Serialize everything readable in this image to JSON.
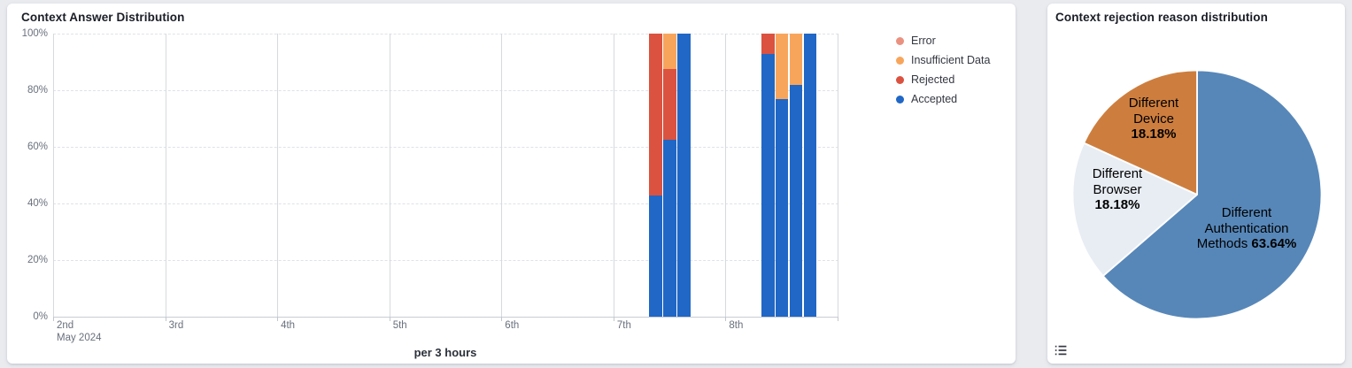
{
  "left_panel": {
    "title": "Context Answer Distribution",
    "legend": [
      {
        "label": "Error",
        "color": "#eb9180"
      },
      {
        "label": "Insufficient Data",
        "color": "#f8a55c"
      },
      {
        "label": "Rejected",
        "color": "#db5240"
      },
      {
        "label": "Accepted",
        "color": "#2067c6"
      }
    ]
  },
  "right_panel": {
    "title": "Context rejection reason distribution"
  },
  "chart_data": [
    {
      "type": "bar",
      "variant": "stacked-percent",
      "title": "Context Answer Distribution",
      "xlabel": "per 3 hours",
      "ylabel": "",
      "ylim": [
        0,
        100
      ],
      "y_ticks": [
        {
          "value": 0,
          "label": "0%"
        },
        {
          "value": 20,
          "label": "20%"
        },
        {
          "value": 40,
          "label": "40%"
        },
        {
          "value": 60,
          "label": "60%"
        },
        {
          "value": 80,
          "label": "80%"
        },
        {
          "value": 100,
          "label": "100%"
        }
      ],
      "x_ticks": [
        {
          "label": "2nd",
          "sublabel": "May 2024"
        },
        {
          "label": "3rd"
        },
        {
          "label": "4th"
        },
        {
          "label": "5th"
        },
        {
          "label": "6th"
        },
        {
          "label": "7th"
        },
        {
          "label": "8th"
        },
        {
          "label": ""
        }
      ],
      "grid": true,
      "legend_position": "right",
      "series_names": [
        "Error",
        "Insufficient Data",
        "Rejected",
        "Accepted"
      ],
      "bars": [
        {
          "day_label": "7th",
          "time": "09:00",
          "position_days": 5.375,
          "segments": [
            {
              "name": "Accepted",
              "pct": 42.86
            },
            {
              "name": "Rejected",
              "pct": 57.14
            }
          ]
        },
        {
          "day_label": "7th",
          "time": "12:00",
          "position_days": 5.5,
          "segments": [
            {
              "name": "Accepted",
              "pct": 62.5
            },
            {
              "name": "Rejected",
              "pct": 25
            },
            {
              "name": "Insufficient Data",
              "pct": 12.5
            }
          ]
        },
        {
          "day_label": "7th",
          "time": "15:00",
          "position_days": 5.625,
          "segments": [
            {
              "name": "Accepted",
              "pct": 100
            }
          ]
        },
        {
          "day_label": "8th",
          "time": "09:00",
          "position_days": 6.375,
          "segments": [
            {
              "name": "Accepted",
              "pct": 92.86
            },
            {
              "name": "Rejected",
              "pct": 7.14
            }
          ]
        },
        {
          "day_label": "8th",
          "time": "12:00",
          "position_days": 6.5,
          "segments": [
            {
              "name": "Accepted",
              "pct": 76.92
            },
            {
              "name": "Insufficient Data",
              "pct": 23.08
            }
          ]
        },
        {
          "day_label": "8th",
          "time": "15:00",
          "position_days": 6.625,
          "segments": [
            {
              "name": "Accepted",
              "pct": 81.82
            },
            {
              "name": "Insufficient Data",
              "pct": 18.18
            }
          ]
        },
        {
          "day_label": "8th",
          "time": "18:00",
          "position_days": 6.75,
          "segments": [
            {
              "name": "Accepted",
              "pct": 100
            }
          ]
        }
      ]
    },
    {
      "type": "pie",
      "title": "Context rejection reason distribution",
      "start_angle_deg": 0,
      "clockwise": true,
      "slices": [
        {
          "label": "Different Authentication Methods",
          "value": 63.64,
          "pct_text": "63.64%",
          "color": "#5787b8",
          "label_lines": [
            "Different",
            "Authentication",
            "Methods"
          ],
          "pct_same_line": true
        },
        {
          "label": "Different Browser",
          "value": 18.18,
          "pct_text": "18.18%",
          "color": "#e8edf4",
          "label_lines": [
            "Different",
            "Browser"
          ],
          "pct_same_line": false
        },
        {
          "label": "Different Device",
          "value": 18.18,
          "pct_text": "18.18%",
          "color": "#cd7e3e",
          "label_lines": [
            "Different",
            "Device"
          ],
          "pct_same_line": false
        }
      ]
    }
  ]
}
